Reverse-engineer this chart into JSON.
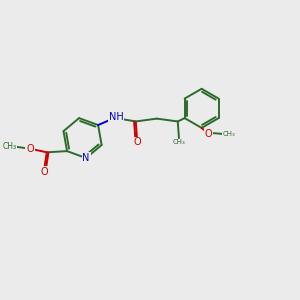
{
  "bg_color": "#ebebeb",
  "bond_color": "#2d6b2d",
  "N_color": "#0000cc",
  "O_color": "#cc0000",
  "font_size_atom": 7.0,
  "font_size_small": 5.5,
  "line_width": 1.4,
  "figw": 3.0,
  "figh": 3.0,
  "dpi": 100,
  "xlim": [
    0,
    12
  ],
  "ylim": [
    0,
    10
  ]
}
